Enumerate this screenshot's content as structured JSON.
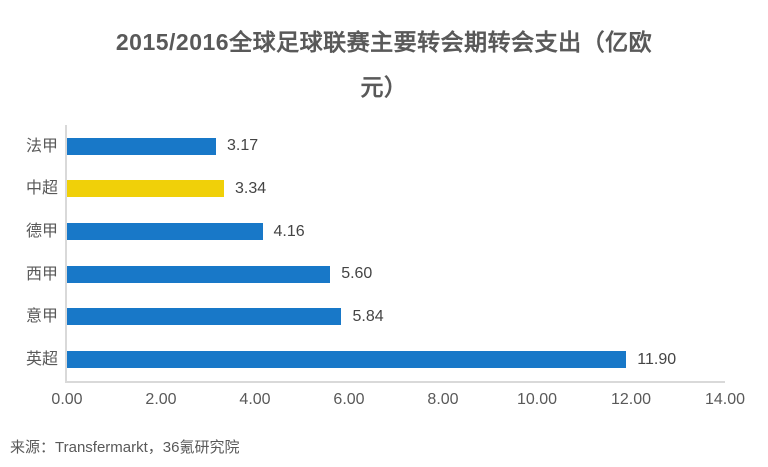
{
  "header": {
    "title_line1": "2015/2016全球足球联赛主要转会期转会支出（亿欧",
    "title_line2": "元）"
  },
  "chart_data": {
    "type": "bar",
    "orientation": "horizontal",
    "title": "2015/2016全球足球联赛主要转会期转会支出（亿欧元）",
    "categories": [
      "法甲",
      "中超",
      "德甲",
      "西甲",
      "意甲",
      "英超"
    ],
    "values": [
      3.17,
      3.34,
      4.16,
      5.6,
      5.84,
      11.9
    ],
    "value_labels": [
      "3.17",
      "3.34",
      "4.16",
      "5.60",
      "5.84",
      "11.90"
    ],
    "xlabel": "",
    "ylabel": "",
    "xlim": [
      0,
      14
    ],
    "x_ticks": [
      "0.00",
      "2.00",
      "4.00",
      "6.00",
      "8.00",
      "10.00",
      "12.00",
      "14.00"
    ],
    "x_tick_values": [
      0,
      2,
      4,
      6,
      8,
      10,
      12,
      14
    ],
    "grid": false,
    "legend": false,
    "highlight_category": "中超",
    "colors": {
      "default_bar": "#1878c8",
      "highlight_bar": "#f0d009",
      "bar_colors": [
        "#1878c8",
        "#f0d009",
        "#1878c8",
        "#1878c8",
        "#1878c8",
        "#1878c8"
      ],
      "title_text": "#595959",
      "axis_line": "#d9d9d9"
    }
  },
  "footer": {
    "source": "来源：Transfermarkt，36氪研究院"
  }
}
